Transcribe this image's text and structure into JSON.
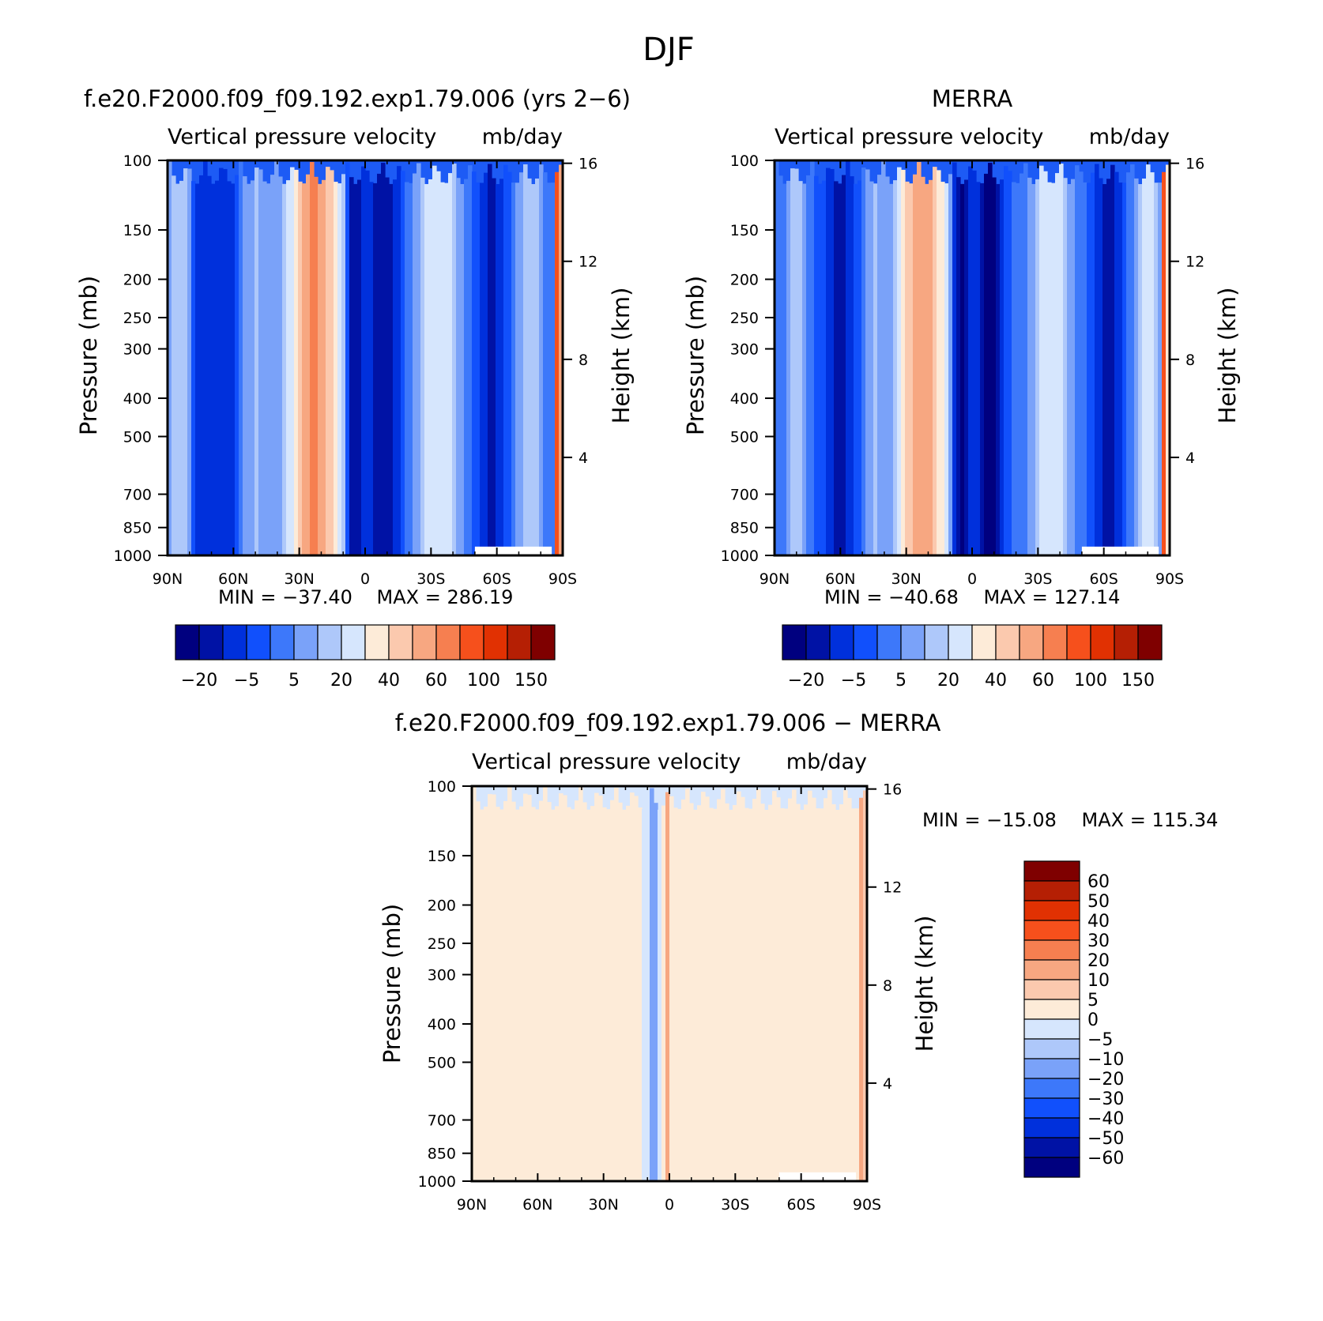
{
  "figure": {
    "title": "DJF"
  },
  "colors": {
    "model_fill_levels": [
      "#000c8a",
      "#00249c",
      "#0a3fd8",
      "#1d5bf5",
      "#4a82fb",
      "#80a9f8",
      "#aec8fa",
      "#d6e6fd"
    ],
    "diff_fill_levels": [
      "#d6e6fd",
      "#fde8d8",
      "#f7a781"
    ],
    "colorbar_15": [
      "#00007f",
      "#0012a5",
      "#0030dc",
      "#1150fc",
      "#3d78fa",
      "#7aa2f9",
      "#aec8fa",
      "#d6e6fd",
      "#fdebd8",
      "#fbc9ae",
      "#f7a781",
      "#f67f50",
      "#f6501c",
      "#e13102",
      "#b51f04",
      "#7f0000"
    ],
    "colorbar_14": [
      "#00007f",
      "#0018b2",
      "#0030dc",
      "#1150fc",
      "#3d78fa",
      "#7aa2f9",
      "#aec8fa",
      "#d6e6fd",
      "#fdebd8",
      "#fbc9ae",
      "#f7a781",
      "#f67f50",
      "#f6501c",
      "#e13102",
      "#b51f04",
      "#7f0000"
    ],
    "missing": "#ffffff"
  },
  "chart_data": [
    {
      "type": "heatmap",
      "id": "model",
      "title": "f.e20.F2000.f09_f09.192.exp1.79.006 (yrs 2−6)",
      "inner_title_left": "Vertical pressure velocity",
      "inner_title_right": "mb/day",
      "xlabel": "",
      "ylabel": "Pressure (mb)",
      "ylabel_right": "Height (km)",
      "x_ticks": [
        "90N",
        "60N",
        "30N",
        "0",
        "30S",
        "60S",
        "90S"
      ],
      "x_range": [
        90,
        -90
      ],
      "y_ticks": [
        "100",
        "150",
        "200",
        "250",
        "300",
        "400",
        "500",
        "700",
        "850",
        "1000"
      ],
      "y_tick_values": [
        100,
        150,
        200,
        250,
        300,
        400,
        500,
        700,
        850,
        1000
      ],
      "y_scale": "log",
      "y_range": [
        1000,
        100
      ],
      "right_ticks": [
        "16",
        "12",
        "8",
        "4"
      ],
      "right_tick_values": [
        16,
        12,
        8,
        4
      ],
      "min_label": "MIN = −37.40",
      "max_label": "MAX = 286.19",
      "min": -37.4,
      "max": 286.19,
      "colorbar_orientation": "horizontal",
      "colorbar_labels": [
        "−20",
        "−5",
        "5",
        "20",
        "40",
        "60",
        "100",
        "150"
      ],
      "features": [
        {
          "lat": 85,
          "w": 6,
          "v": 10
        },
        {
          "lat": 75,
          "w": 4,
          "v": -15
        },
        {
          "lat": 64,
          "w": 5,
          "v": -20
        },
        {
          "lat": 50,
          "w": 8,
          "v": 5
        },
        {
          "lat": 24,
          "w": 9,
          "v": 32
        },
        {
          "lat": 20,
          "w": 13,
          "v": 22
        },
        {
          "lat": 5,
          "w": 4,
          "v": -35
        },
        {
          "lat": -8,
          "w": 6,
          "v": -30
        },
        {
          "lat": -33,
          "w": 9,
          "v": 20
        },
        {
          "lat": -58,
          "w": 5,
          "v": -22
        },
        {
          "lat": -75,
          "w": 6,
          "v": 10
        },
        {
          "lat": -88,
          "w": 1,
          "v": 150
        }
      ]
    },
    {
      "type": "heatmap",
      "id": "merra",
      "title": "MERRA",
      "inner_title_left": "Vertical pressure velocity",
      "inner_title_right": "mb/day",
      "xlabel": "",
      "ylabel": "Pressure (mb)",
      "ylabel_right": "Height (km)",
      "x_ticks": [
        "90N",
        "60N",
        "30N",
        "0",
        "30S",
        "60S",
        "90S"
      ],
      "x_range": [
        90,
        -90
      ],
      "y_ticks": [
        "100",
        "150",
        "200",
        "250",
        "300",
        "400",
        "500",
        "700",
        "850",
        "1000"
      ],
      "y_tick_values": [
        100,
        150,
        200,
        250,
        300,
        400,
        500,
        700,
        850,
        1000
      ],
      "y_scale": "log",
      "y_range": [
        1000,
        100
      ],
      "right_ticks": [
        "16",
        "12",
        "8",
        "4"
      ],
      "right_tick_values": [
        16,
        12,
        8,
        4
      ],
      "min_label": "MIN = −40.68",
      "max_label": "MAX = 127.14",
      "min": -40.68,
      "max": 127.14,
      "colorbar_orientation": "horizontal",
      "colorbar_labels": [
        "−20",
        "−5",
        "5",
        "20",
        "40",
        "60",
        "100",
        "150"
      ],
      "features": [
        {
          "lat": 80,
          "w": 5,
          "v": 10
        },
        {
          "lat": 60,
          "w": 6,
          "v": -25
        },
        {
          "lat": 45,
          "w": 5,
          "v": 5
        },
        {
          "lat": 24,
          "w": 9,
          "v": 30
        },
        {
          "lat": 20,
          "w": 12,
          "v": 20
        },
        {
          "lat": 5,
          "w": 4,
          "v": -38
        },
        {
          "lat": -8,
          "w": 5,
          "v": -35
        },
        {
          "lat": -36,
          "w": 8,
          "v": 20
        },
        {
          "lat": -62,
          "w": 5,
          "v": -25
        },
        {
          "lat": -80,
          "w": 5,
          "v": 15
        },
        {
          "lat": -88,
          "w": 1,
          "v": 100
        }
      ]
    },
    {
      "type": "heatmap",
      "id": "diff",
      "title": "f.e20.F2000.f09_f09.192.exp1.79.006 − MERRA",
      "inner_title_left": "Vertical pressure velocity",
      "inner_title_right": "mb/day",
      "xlabel": "",
      "ylabel": "Pressure (mb)",
      "ylabel_right": "Height (km)",
      "x_ticks": [
        "90N",
        "60N",
        "30N",
        "0",
        "30S",
        "60S",
        "90S"
      ],
      "x_range": [
        90,
        -90
      ],
      "y_ticks": [
        "100",
        "150",
        "200",
        "250",
        "300",
        "400",
        "500",
        "700",
        "850",
        "1000"
      ],
      "y_tick_values": [
        100,
        150,
        200,
        250,
        300,
        400,
        500,
        700,
        850,
        1000
      ],
      "y_scale": "log",
      "y_range": [
        1000,
        100
      ],
      "right_ticks": [
        "16",
        "12",
        "8",
        "4"
      ],
      "right_tick_values": [
        16,
        12,
        8,
        4
      ],
      "min_label": "MIN = −15.08",
      "max_label": "MAX = 115.34",
      "min": -15.08,
      "max": 115.34,
      "colorbar_orientation": "vertical",
      "colorbar_labels": [
        "60",
        "50",
        "40",
        "30",
        "20",
        "10",
        "5",
        "0",
        "−5",
        "−10",
        "−20",
        "−30",
        "−40",
        "−50",
        "−60"
      ],
      "features": [
        {
          "lat": 68,
          "w": 10,
          "v": 2
        },
        {
          "lat": 38,
          "w": 10,
          "v": 2
        },
        {
          "lat": 7,
          "w": 2,
          "v": -15
        },
        {
          "lat": 1,
          "w": 2,
          "v": 10
        },
        {
          "lat": -25,
          "w": 15,
          "v": 2
        },
        {
          "lat": -70,
          "w": 5,
          "v": 5
        },
        {
          "lat": -88,
          "w": 1,
          "v": 30
        }
      ]
    }
  ]
}
